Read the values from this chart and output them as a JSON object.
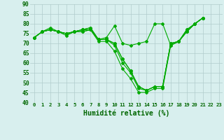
{
  "xlabel": "Humidité relative (%)",
  "xlim": [
    -0.5,
    23.5
  ],
  "ylim": [
    40,
    90
  ],
  "yticks": [
    40,
    45,
    50,
    55,
    60,
    65,
    70,
    75,
    80,
    85,
    90
  ],
  "xticks": [
    0,
    1,
    2,
    3,
    4,
    5,
    6,
    7,
    8,
    9,
    10,
    11,
    12,
    13,
    14,
    15,
    16,
    17,
    18,
    19,
    20,
    21,
    22,
    23
  ],
  "bg_color": "#d8efee",
  "grid_color": "#b0cccc",
  "line_color": "#00aa00",
  "series": [
    [
      73,
      76,
      77,
      76,
      74,
      76,
      76,
      77,
      71,
      71,
      66,
      57,
      52,
      45,
      45,
      47,
      47,
      69,
      71,
      76,
      80,
      83
    ],
    [
      73,
      76,
      77,
      76,
      75,
      76,
      76,
      77,
      72,
      72,
      69,
      60,
      55,
      47,
      46,
      48,
      48,
      70,
      71,
      76,
      80,
      83
    ],
    [
      73,
      76,
      77,
      76,
      75,
      76,
      77,
      77,
      72,
      72,
      70,
      62,
      56,
      48,
      46,
      48,
      48,
      70,
      71,
      77,
      80,
      83
    ],
    [
      73,
      76,
      77,
      76,
      75,
      76,
      77,
      78,
      72,
      72,
      70,
      62,
      56,
      48,
      46,
      48,
      48,
      70,
      71,
      77,
      80,
      83
    ],
    [
      73,
      76,
      78,
      76,
      75,
      76,
      77,
      78,
      72,
      73,
      79,
      70,
      69,
      70,
      71,
      80,
      80,
      69,
      71,
      76,
      80,
      83
    ]
  ],
  "x_starts": [
    0,
    0,
    0,
    0,
    0
  ]
}
